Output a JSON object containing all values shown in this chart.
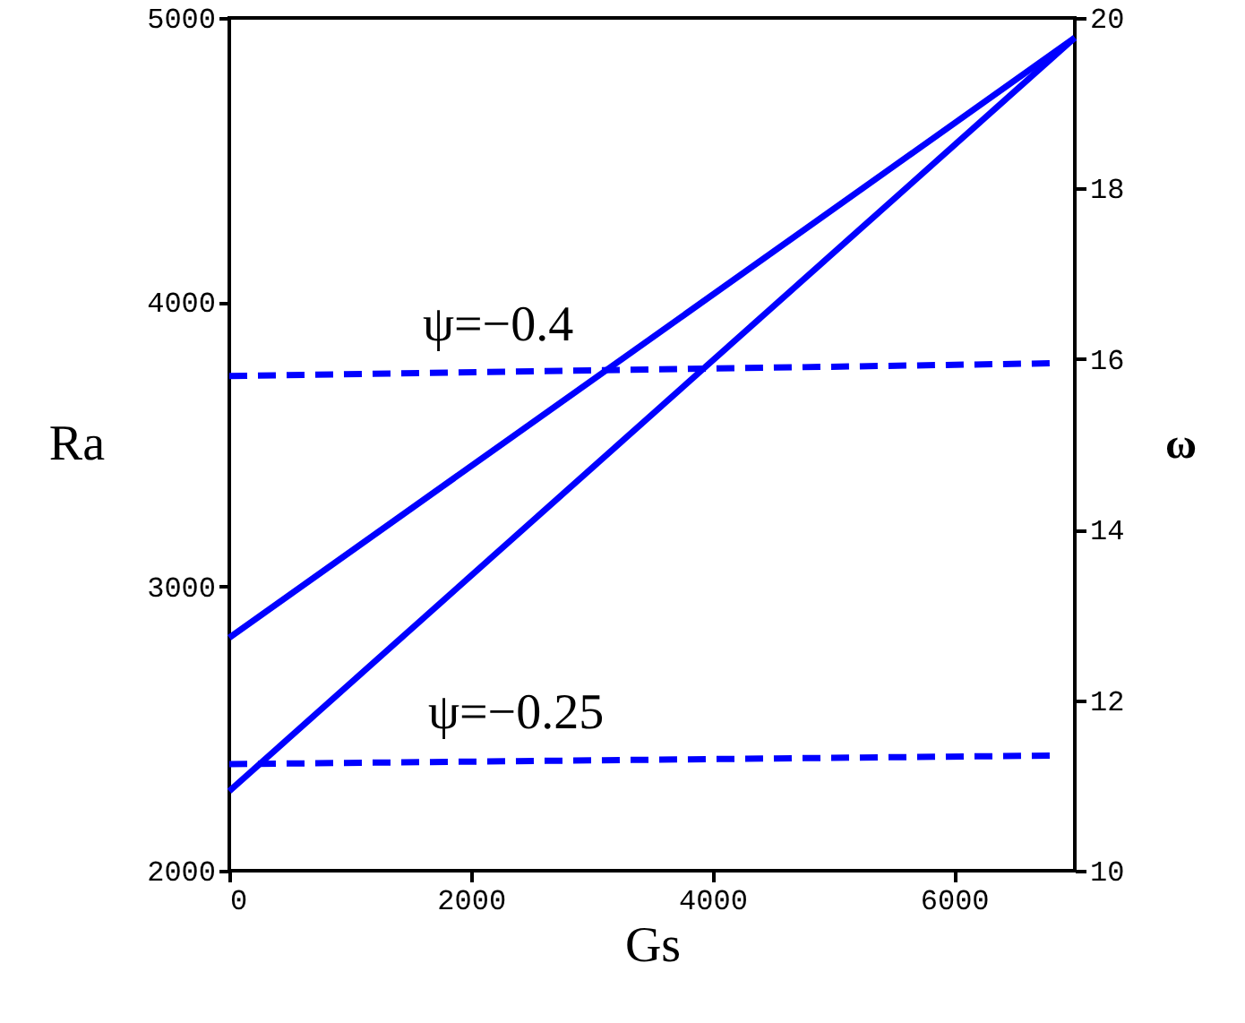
{
  "chart_data": {
    "type": "line",
    "xlabel": "Gs",
    "ylabel": "Ra",
    "y2label": "ω",
    "xlim": [
      0,
      7000
    ],
    "xticks": [
      0,
      2000,
      4000,
      6000
    ],
    "ylim": [
      2000,
      5000
    ],
    "yticks": [
      2000,
      3000,
      4000,
      5000
    ],
    "y2lim": [
      10,
      20
    ],
    "y2ticks": [
      10,
      12,
      14,
      16,
      18,
      20
    ],
    "marker": "none",
    "series": [
      {
        "color": "#0000ff",
        "line_style": "solid",
        "x": [
          0,
          7000
        ],
        "values": [
          2820,
          4930
        ]
      },
      {
        "color": "#0000ff",
        "line_style": "solid",
        "x": [
          0,
          7000
        ],
        "values": [
          2280,
          4930
        ]
      },
      {
        "color": "#0000ff",
        "line_style": "dashed",
        "axis": "y2",
        "x": [
          0,
          6800
        ],
        "values": [
          15.8,
          15.95
        ]
      },
      {
        "color": "#0000ff",
        "line_style": "dashed",
        "axis": "y2",
        "x": [
          0,
          6800
        ],
        "values": [
          11.25,
          11.35
        ]
      }
    ],
    "annotations": [
      "ψ=−0.4",
      "ψ=−0.25"
    ]
  }
}
